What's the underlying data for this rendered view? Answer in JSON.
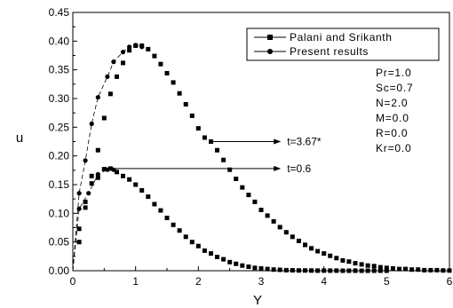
{
  "chart_data": {
    "type": "scatter",
    "xlabel": "Y",
    "ylabel": "u",
    "xlim": [
      0,
      6
    ],
    "ylim": [
      0,
      0.45
    ],
    "x_ticks": [
      "0",
      "1",
      "2",
      "3",
      "4",
      "5",
      "6"
    ],
    "y_ticks": [
      "0.00",
      "0.05",
      "0.10",
      "0.15",
      "0.20",
      "0.25",
      "0.30",
      "0.35",
      "0.40",
      "0.45"
    ],
    "grid": false,
    "legend_position": "top-right",
    "legend": [
      {
        "label": "Palani and Srikanth",
        "marker": "square",
        "line": "dashed"
      },
      {
        "label": "Present results",
        "marker": "circle",
        "line": "dashed"
      }
    ],
    "parameters": [
      "Pr=1.0",
      "Sc=0.7",
      "N=2.0",
      "M=0.0",
      "R=0.0",
      "Kr=0.0"
    ],
    "annotations": [
      {
        "text": "t=3.67*",
        "arrow_from": [
          2.2,
          0.225
        ],
        "arrow_to": [
          3.3,
          0.225
        ]
      },
      {
        "text": "t=0.6",
        "arrow_from": [
          0.6,
          0.178
        ],
        "arrow_to": [
          3.3,
          0.178
        ]
      }
    ],
    "series": [
      {
        "t": "3.67*",
        "palani_x": [
          0.1,
          0.2,
          0.3,
          0.4,
          0.5,
          0.6,
          0.7,
          0.8,
          0.9,
          1.0,
          1.1,
          1.2,
          1.3,
          1.4,
          1.5,
          1.6,
          1.7,
          1.8,
          1.9,
          2.0,
          2.1,
          2.2,
          2.3,
          2.4,
          2.5,
          2.6,
          2.7,
          2.8,
          2.9,
          3.0,
          3.1,
          3.2,
          3.3,
          3.4,
          3.5,
          3.6,
          3.7,
          3.8,
          3.9,
          4.0,
          4.1,
          4.2,
          4.3,
          4.4,
          4.5,
          4.6,
          4.7,
          4.8,
          4.9,
          5.0,
          5.1,
          5.2,
          5.3,
          5.4,
          5.5,
          5.6,
          5.7,
          5.8,
          5.9,
          6.0
        ],
        "palani_y": [
          0.05,
          0.11,
          0.165,
          0.21,
          0.266,
          0.308,
          0.338,
          0.362,
          0.384,
          0.392,
          0.392,
          0.386,
          0.374,
          0.36,
          0.344,
          0.328,
          0.309,
          0.29,
          0.27,
          0.248,
          0.232,
          0.225,
          0.21,
          0.193,
          0.176,
          0.16,
          0.145,
          0.132,
          0.12,
          0.106,
          0.096,
          0.086,
          0.076,
          0.067,
          0.059,
          0.052,
          0.045,
          0.039,
          0.034,
          0.03,
          0.026,
          0.022,
          0.018,
          0.016,
          0.013,
          0.011,
          0.009,
          0.008,
          0.006,
          0.005,
          0.004,
          0.003,
          0.003,
          0.002,
          0.002,
          0.001,
          0.001,
          0.001,
          0.0005,
          0.0003
        ],
        "present_x": [
          0.1,
          0.2,
          0.3,
          0.4,
          0.55,
          0.65,
          0.8,
          0.9,
          1.0,
          1.1
        ],
        "present_y": [
          0.135,
          0.192,
          0.256,
          0.302,
          0.338,
          0.364,
          0.381,
          0.39,
          0.393,
          0.39
        ]
      },
      {
        "t": "0.6",
        "palani_x": [
          0.1,
          0.2,
          0.3,
          0.4,
          0.5,
          0.6,
          0.7,
          0.8,
          0.9,
          1.0,
          1.1,
          1.2,
          1.3,
          1.4,
          1.5,
          1.6,
          1.7,
          1.8,
          1.9,
          2.0,
          2.1,
          2.2,
          2.3,
          2.4,
          2.5,
          2.6,
          2.7,
          2.8,
          2.9,
          3.0,
          3.1,
          3.2,
          3.3,
          3.4,
          3.5,
          3.6,
          3.7,
          3.8,
          3.9,
          4.0,
          4.1,
          4.2,
          4.3,
          4.4,
          4.5,
          4.6,
          4.7,
          4.8,
          4.9,
          5.0
        ],
        "palani_y": [
          0.073,
          0.12,
          0.152,
          0.162,
          0.177,
          0.178,
          0.172,
          0.165,
          0.159,
          0.15,
          0.14,
          0.129,
          0.116,
          0.105,
          0.092,
          0.08,
          0.07,
          0.059,
          0.05,
          0.043,
          0.035,
          0.03,
          0.024,
          0.02,
          0.015,
          0.012,
          0.009,
          0.007,
          0.005,
          0.004,
          0.003,
          0.002,
          0.0015,
          0.001,
          0.0008,
          0.0005,
          0.0004,
          0.0003,
          0.0002,
          0.0001,
          0.0001,
          0.0001,
          0.0,
          0.0,
          0.0,
          0.0,
          0.0,
          0.0,
          0.0,
          0.0
        ],
        "present_x": [
          0.1,
          0.25,
          0.4,
          0.55,
          0.65
        ],
        "present_y": [
          0.108,
          0.135,
          0.168,
          0.176,
          0.176
        ]
      }
    ]
  }
}
